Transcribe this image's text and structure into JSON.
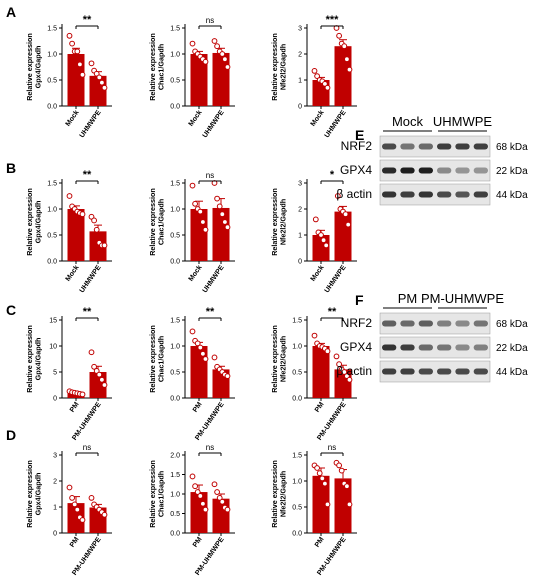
{
  "figure": {
    "panel_letters": [
      "A",
      "B",
      "C",
      "D",
      "E",
      "F"
    ],
    "colors": {
      "bar": "#c00000",
      "point": "#c00000",
      "axis": "#000000",
      "blot_band": "#1a1a1a",
      "blot_bg": "#e6e6e6"
    }
  },
  "chart_data": [
    {
      "id": "A1",
      "panel": "A",
      "type": "bar",
      "categories": [
        "Mock",
        "UHMWPE"
      ],
      "ylabel": "Relative expression\nGpx4/Gapdh",
      "yticks": [
        0.0,
        0.5,
        1.0,
        1.5
      ],
      "ylim": [
        0,
        1.5
      ],
      "values": [
        1.0,
        0.58
      ],
      "errors": [
        0.11,
        0.08
      ],
      "points": [
        [
          1.35,
          1.2,
          1.05,
          1.05,
          0.8,
          0.6
        ],
        [
          0.82,
          0.68,
          0.62,
          0.55,
          0.45,
          0.35
        ]
      ],
      "significance": "**"
    },
    {
      "id": "A2",
      "panel": "A",
      "type": "bar",
      "categories": [
        "Mock",
        "UHMWPE"
      ],
      "ylabel": "Relative expression\nChac1/Gapdh",
      "yticks": [
        0.0,
        0.5,
        1.0,
        1.5
      ],
      "ylim": [
        0,
        1.5
      ],
      "values": [
        1.0,
        1.02
      ],
      "errors": [
        0.05,
        0.09
      ],
      "points": [
        [
          1.2,
          1.05,
          1.0,
          0.95,
          0.9,
          0.85
        ],
        [
          1.25,
          1.15,
          1.05,
          1.0,
          0.9,
          0.75
        ]
      ],
      "significance": "ns"
    },
    {
      "id": "A3",
      "panel": "A",
      "type": "bar",
      "categories": [
        "Mock",
        "UHMWPE"
      ],
      "ylabel": "Relative expression\nNfe2l2/Gapdh",
      "yticks": [
        0,
        1,
        2,
        3
      ],
      "ylim": [
        0,
        3
      ],
      "values": [
        1.0,
        2.3
      ],
      "errors": [
        0.1,
        0.25
      ],
      "points": [
        [
          1.35,
          1.15,
          1.0,
          0.95,
          0.85,
          0.7
        ],
        [
          3.0,
          2.7,
          2.4,
          2.3,
          1.8,
          1.4
        ]
      ],
      "significance": "***"
    },
    {
      "id": "B1",
      "panel": "B",
      "type": "bar",
      "categories": [
        "Mock",
        "UHMWPE"
      ],
      "ylabel": "Relative expression\nGpx4/Gapdh",
      "yticks": [
        0.0,
        0.5,
        1.0,
        1.5
      ],
      "ylim": [
        0,
        1.5
      ],
      "values": [
        1.0,
        0.57
      ],
      "errors": [
        0.06,
        0.12
      ],
      "points": [
        [
          1.25,
          1.05,
          1.0,
          0.95,
          0.92,
          0.9
        ],
        [
          0.85,
          0.78,
          0.6,
          0.35,
          0.3,
          0.3
        ]
      ],
      "significance": "**"
    },
    {
      "id": "B2",
      "panel": "B",
      "type": "bar",
      "categories": [
        "Mock",
        "UHMWPE"
      ],
      "ylabel": "Relative expression\nChac1/Gapdh",
      "yticks": [
        0.0,
        0.5,
        1.0,
        1.5
      ],
      "ylim": [
        0,
        1.5
      ],
      "values": [
        1.0,
        1.02
      ],
      "errors": [
        0.15,
        0.18
      ],
      "points": [
        [
          1.45,
          1.1,
          1.0,
          0.95,
          0.75,
          0.6
        ],
        [
          1.5,
          1.2,
          1.05,
          0.9,
          0.75,
          0.65
        ]
      ],
      "significance": "ns"
    },
    {
      "id": "B3",
      "panel": "B",
      "type": "bar",
      "categories": [
        "Mock",
        "UHMWPE"
      ],
      "ylabel": "Relative expression\nNfe2l2/Gapdh",
      "yticks": [
        0,
        1,
        2,
        3
      ],
      "ylim": [
        0,
        3
      ],
      "values": [
        1.0,
        1.9
      ],
      "errors": [
        0.18,
        0.2
      ],
      "points": [
        [
          1.6,
          1.1,
          1.0,
          0.8,
          0.6
        ],
        [
          2.5,
          2.0,
          1.9,
          1.8,
          1.4
        ]
      ],
      "significance": "*"
    },
    {
      "id": "C1",
      "panel": "C",
      "type": "bar",
      "categories": [
        "PM",
        "PM-UHMWPE"
      ],
      "ylabel": "Relative expression\nGpx4/Gapdh",
      "yticks": [
        0,
        5,
        10,
        15
      ],
      "ylim": [
        0,
        15
      ],
      "values": [
        1.0,
        5.0
      ],
      "errors": [
        0.15,
        1.1
      ],
      "points": [
        [
          1.3,
          1.1,
          1.0,
          0.9,
          0.8,
          0.7
        ],
        [
          8.8,
          6.0,
          5.2,
          4.5,
          3.5,
          2.5
        ]
      ],
      "significance": "**"
    },
    {
      "id": "C2",
      "panel": "C",
      "type": "bar",
      "categories": [
        "PM",
        "PM-UHMWPE"
      ],
      "ylabel": "Relative expression\nChac1/Gapdh",
      "yticks": [
        0.0,
        0.5,
        1.0,
        1.5
      ],
      "ylim": [
        0,
        1.5
      ],
      "values": [
        1.0,
        0.55
      ],
      "errors": [
        0.07,
        0.06
      ],
      "points": [
        [
          1.28,
          1.1,
          1.05,
          0.97,
          0.85,
          0.75
        ],
        [
          0.78,
          0.6,
          0.55,
          0.5,
          0.45,
          0.42
        ]
      ],
      "significance": "**"
    },
    {
      "id": "C3",
      "panel": "C",
      "type": "bar",
      "categories": [
        "PM",
        "PM-UHMWPE"
      ],
      "ylabel": "Relative expression\nNfe2l2/Gapdh",
      "yticks": [
        0.0,
        0.5,
        1.0,
        1.5
      ],
      "ylim": [
        0,
        1.5
      ],
      "values": [
        1.0,
        0.55
      ],
      "errors": [
        0.05,
        0.08
      ],
      "points": [
        [
          1.2,
          1.05,
          1.0,
          0.98,
          0.95,
          0.9
        ],
        [
          0.8,
          0.65,
          0.55,
          0.5,
          0.42,
          0.35
        ]
      ],
      "significance": "**"
    },
    {
      "id": "D1",
      "panel": "D",
      "type": "bar",
      "categories": [
        "PM",
        "PM-UHMWPE"
      ],
      "ylabel": "Relative expression\nGpx4/Gapdh",
      "yticks": [
        0,
        1,
        2,
        3
      ],
      "ylim": [
        0,
        3
      ],
      "values": [
        1.15,
        0.98
      ],
      "errors": [
        0.25,
        0.12
      ],
      "points": [
        [
          1.75,
          1.35,
          1.1,
          0.9,
          0.6,
          0.5
        ],
        [
          1.35,
          1.1,
          1.0,
          0.9,
          0.8,
          0.7
        ]
      ],
      "significance": "ns"
    },
    {
      "id": "D2",
      "panel": "D",
      "type": "bar",
      "categories": [
        "PM",
        "PM-UHMWPE"
      ],
      "ylabel": "Relative expression\nChac1/Gapdh",
      "yticks": [
        0.0,
        0.5,
        1.0,
        1.5,
        2.0
      ],
      "ylim": [
        0,
        2
      ],
      "values": [
        1.05,
        0.88
      ],
      "errors": [
        0.18,
        0.12
      ],
      "points": [
        [
          1.45,
          1.2,
          1.05,
          0.95,
          0.75,
          0.6
        ],
        [
          1.25,
          1.05,
          0.9,
          0.8,
          0.65,
          0.6
        ]
      ],
      "significance": "ns"
    },
    {
      "id": "D3",
      "panel": "D",
      "type": "bar",
      "categories": [
        "PM",
        "PM-UHMWPE"
      ],
      "ylabel": "Relative expression\nNfe2l2/Gapdh",
      "yticks": [
        0.0,
        0.5,
        1.0,
        1.5
      ],
      "ylim": [
        0,
        1.5
      ],
      "values": [
        1.1,
        1.05
      ],
      "errors": [
        0.15,
        0.17
      ],
      "points": [
        [
          1.3,
          1.25,
          1.15,
          1.05,
          0.95,
          0.55
        ],
        [
          1.35,
          1.3,
          1.2,
          0.95,
          0.9,
          0.55
        ]
      ],
      "significance": "ns"
    }
  ],
  "blots": [
    {
      "id": "E",
      "panel": "E",
      "groups": [
        "Mock",
        "UHMWPE"
      ],
      "rows": [
        {
          "protein": "NRF2",
          "kda": "68 kDa",
          "intensity": [
            0.75,
            0.55,
            0.6,
            0.8,
            0.8,
            0.8
          ]
        },
        {
          "protein": "GPX4",
          "kda": "22 kDa",
          "intensity": [
            0.9,
            0.95,
            0.95,
            0.45,
            0.4,
            0.4
          ]
        },
        {
          "protein": "β actin",
          "kda": "44 kDa",
          "intensity": [
            0.85,
            0.8,
            0.85,
            0.75,
            0.7,
            0.8
          ]
        }
      ]
    },
    {
      "id": "F",
      "panel": "F",
      "groups": [
        "PM",
        "PM-UHMWPE"
      ],
      "rows": [
        {
          "protein": "NRF2",
          "kda": "68 kDa",
          "intensity": [
            0.65,
            0.6,
            0.65,
            0.5,
            0.45,
            0.55
          ]
        },
        {
          "protein": "GPX4",
          "kda": "22 kDa",
          "intensity": [
            0.85,
            0.8,
            0.6,
            0.55,
            0.45,
            0.5
          ]
        },
        {
          "protein": "β actin",
          "kda": "44 kDa",
          "intensity": [
            0.8,
            0.8,
            0.75,
            0.75,
            0.75,
            0.75
          ]
        }
      ]
    }
  ]
}
